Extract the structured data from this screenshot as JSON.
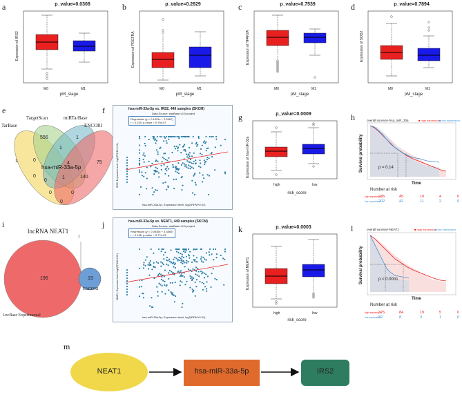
{
  "panels": {
    "a": {
      "letter": "a",
      "title": "p_value=0.0308",
      "ylabel": "Expression of IRS2",
      "xlabel": "pM_stage",
      "groups": [
        "M0",
        "M1"
      ],
      "yticks": [
        "2",
        "3",
        "4",
        "5",
        "6",
        "7"
      ]
    },
    "b": {
      "letter": "b",
      "title": "p_value=0.2629",
      "ylabel": "Expression of PDGFRA",
      "xlabel": "pM_stage",
      "groups": [
        "M0",
        "M1"
      ],
      "yticks": [
        "0",
        "2",
        "4",
        "6"
      ]
    },
    "c": {
      "letter": "c",
      "title": "p_value=0.7539",
      "ylabel": "Expression of TFAP2A",
      "xlabel": "pM_stage",
      "groups": [
        "M0",
        "M1"
      ],
      "yticks": [
        "0",
        "2",
        "4",
        "6",
        "8",
        "10"
      ]
    },
    "d": {
      "letter": "d",
      "title": "p_value=0.7894",
      "ylabel": "Expression of SOD2",
      "xlabel": "pM_stage",
      "groups": [
        "M0",
        "M1"
      ],
      "yticks": [
        "3",
        "4",
        "5",
        "6",
        "7",
        "8"
      ]
    },
    "e": {
      "letter": "e",
      "sets": [
        "TarBase",
        "TargetScan",
        "miRTarBase",
        "ENCORI"
      ],
      "center": "hsa-miR-33a-5p",
      "counts": [
        "1",
        "556",
        "1",
        "75",
        "1",
        "0",
        "4",
        "140",
        "0",
        "1",
        "0",
        "0",
        "0",
        "0"
      ]
    },
    "f": {
      "letter": "f",
      "title": "hsa-miR-33a-5p vs. IRS2, 449 samples (SKCM)",
      "source": "Data Source: starBase v3.0 project",
      "reg": "Regression (y = 0.1001x + 2.5967)",
      "stat": "r = 0.229, p-value = 9.75e-07",
      "xlabel": "hsa-miR-33a-5p, Expression level: log2(RPM+0.01)",
      "ylabel": "IRS2, Expression level: log2(FPKM+0.01)",
      "xticks": [
        "-7.5",
        "-5",
        "-2.5",
        "0",
        "2.5",
        "5",
        "7.5"
      ]
    },
    "g": {
      "letter": "g",
      "title": "p_value=0.0009",
      "ylabel": "Expression of hsa-miR-33a",
      "xlabel": "risk_score",
      "groups": [
        "high",
        "low"
      ],
      "yticks": [
        "2",
        "4",
        "6"
      ]
    },
    "h": {
      "letter": "h",
      "title": "overall survival--hsa_miR_33a",
      "legend": [
        "high expression",
        "low expression"
      ],
      "ylabel": "Survival probability",
      "xlabel": "Time",
      "pval": "p = 0.14",
      "risk_title": "Number at risk",
      "side": "overall survival--hsa_miR_33a",
      "risk_rows": [
        [
          "high expression",
          "235",
          "45",
          "10",
          "4",
          "0"
        ],
        [
          "low expression",
          "202",
          "42",
          "11",
          "2",
          "0"
        ]
      ],
      "xticks": [
        "0",
        "3000",
        "6000",
        "9000",
        "12000"
      ],
      "yticks": [
        "0.00",
        "0.25",
        "0.50",
        "0.75",
        "1.00"
      ]
    },
    "i": {
      "letter": "i",
      "label_top": "lncRNA NEAT1",
      "left": "LncBase Experimental",
      "right": "ENCORI",
      "left_count": "196",
      "right_count": "19",
      "overlap": "1"
    },
    "j": {
      "letter": "j",
      "title": "hsa-miR-33a-5p vs. NEAT1, 449 samples (SKCM)",
      "source": "Data Source: starBase v3.0 project",
      "reg": "Regression (y = 0.0935x + 3.3800)",
      "stat": "r = 0.136, p-value = 3.77e-03",
      "xlabel": "hsa-miR-33a-5p, Expression level: log2(RPM+0.01)",
      "ylabel": "NEAT1, Expression level: log2(FPKM+0.01)",
      "xticks": [
        "-7.5",
        "-5",
        "-2.5",
        "0",
        "2.5",
        "5",
        "7.5"
      ]
    },
    "k": {
      "letter": "k",
      "title": "p_value=0.0003",
      "ylabel": "Expression of NEAT1",
      "xlabel": "risk_score",
      "groups": [
        "high",
        "low"
      ],
      "yticks": [
        "1.5",
        "2.0",
        "2.5",
        "3.0",
        "3.5"
      ]
    },
    "l": {
      "letter": "l",
      "title": "overall survival--NEAT1",
      "legend": [
        "high expression",
        "low expression"
      ],
      "ylabel": "Survival probability",
      "xlabel": "Time",
      "pval": "p < 0.0001",
      "risk_title": "Number at risk",
      "side": "overall survival--NEAT1",
      "risk_rows": [
        [
          "high expression",
          "375",
          "84",
          "19",
          "5",
          "0"
        ],
        [
          "low expression",
          "82",
          "8",
          "3",
          "1",
          "0"
        ]
      ],
      "xticks": [
        "0",
        "3000",
        "6000",
        "9000",
        "12000"
      ],
      "yticks": [
        "0.00",
        "0.25",
        "0.50",
        "0.75",
        "1.00"
      ]
    },
    "m": {
      "letter": "m",
      "nodes": [
        "NEAT1",
        "hsa-miR-33a-5p",
        "IRS2"
      ]
    }
  },
  "colors": {
    "red": "#e8201f",
    "blue": "#1a1ae8",
    "teal": "#2f7d60",
    "orange": "#e06a2c",
    "yellow": "#f0d84a"
  }
}
